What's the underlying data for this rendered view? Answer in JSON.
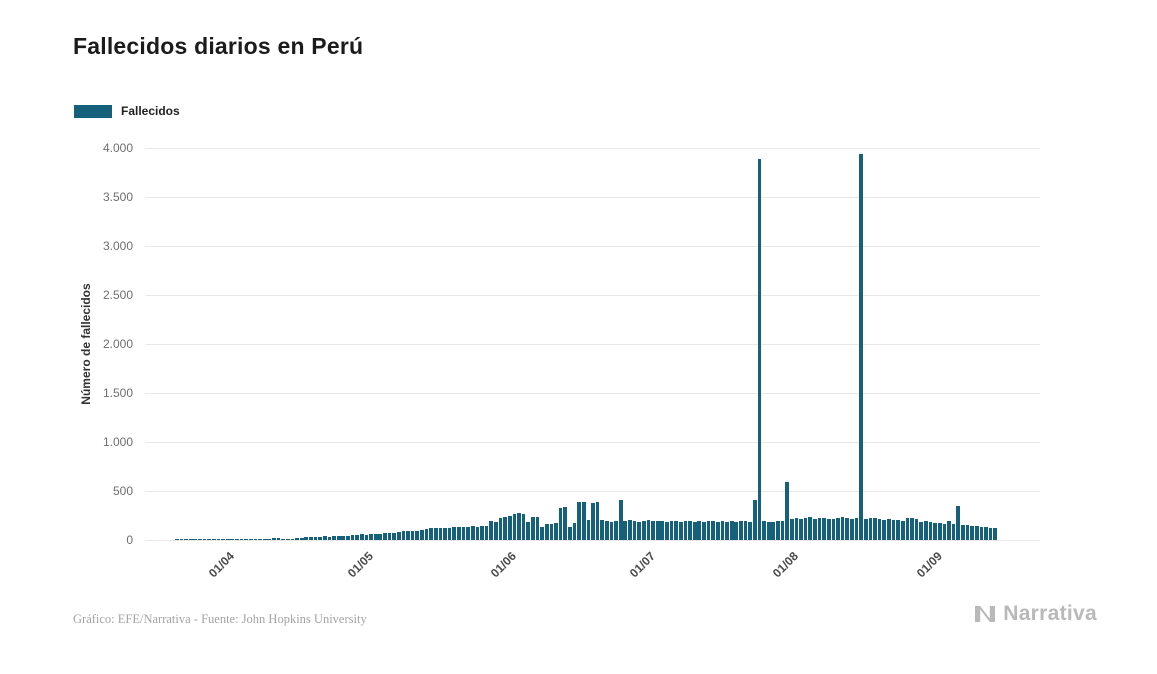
{
  "page": {
    "title": "Fallecidos diarios en Perú",
    "footer_credit": "Gráfico: EFE/Narrativa - Fuente: John Hopkins University",
    "brand": "Narrativa",
    "brand_icon": "narrativa-n-icon"
  },
  "legend": {
    "label": "Fallecidos",
    "color": "#15607a"
  },
  "chart_data": {
    "type": "bar",
    "title": "Fallecidos diarios en Perú",
    "series_name": "Fallecidos",
    "xlabel": "",
    "ylabel": "Número de fallecidos",
    "bar_color": "#15607a",
    "grid": true,
    "legend_position": "top-left",
    "ylim": [
      0,
      4000
    ],
    "yticks": [
      0,
      500,
      1000,
      1500,
      2000,
      2500,
      3000,
      3500,
      4000
    ],
    "ytick_labels": [
      "0",
      "500",
      "1.000",
      "1.500",
      "2.000",
      "2.500",
      "3.000",
      "3.500",
      "4.000"
    ],
    "xticks": [
      "01/04",
      "01/05",
      "01/06",
      "01/07",
      "01/08",
      "01/09"
    ],
    "dates": [
      "20/03",
      "21/03",
      "22/03",
      "23/03",
      "24/03",
      "25/03",
      "26/03",
      "27/03",
      "28/03",
      "29/03",
      "30/03",
      "31/03",
      "01/04",
      "02/04",
      "03/04",
      "04/04",
      "05/04",
      "06/04",
      "07/04",
      "08/04",
      "09/04",
      "10/04",
      "11/04",
      "12/04",
      "13/04",
      "14/04",
      "15/04",
      "16/04",
      "17/04",
      "18/04",
      "19/04",
      "20/04",
      "21/04",
      "22/04",
      "23/04",
      "24/04",
      "25/04",
      "26/04",
      "27/04",
      "28/04",
      "29/04",
      "30/04",
      "01/05",
      "02/05",
      "03/05",
      "04/05",
      "05/05",
      "06/05",
      "07/05",
      "08/05",
      "09/05",
      "10/05",
      "11/05",
      "12/05",
      "13/05",
      "14/05",
      "15/05",
      "16/05",
      "17/05",
      "18/05",
      "19/05",
      "20/05",
      "21/05",
      "22/05",
      "23/05",
      "24/05",
      "25/05",
      "26/05",
      "27/05",
      "28/05",
      "29/05",
      "30/05",
      "31/05",
      "01/06",
      "02/06",
      "03/06",
      "04/06",
      "05/06",
      "06/06",
      "07/06",
      "08/06",
      "09/06",
      "10/06",
      "11/06",
      "12/06",
      "13/06",
      "14/06",
      "15/06",
      "16/06",
      "17/06",
      "18/06",
      "19/06",
      "20/06",
      "21/06",
      "22/06",
      "23/06",
      "24/06",
      "25/06",
      "26/06",
      "27/06",
      "28/06",
      "29/06",
      "30/06",
      "01/07",
      "02/07",
      "03/07",
      "04/07",
      "05/07",
      "06/07",
      "07/07",
      "08/07",
      "09/07",
      "10/07",
      "11/07",
      "12/07",
      "13/07",
      "14/07",
      "15/07",
      "16/07",
      "17/07",
      "18/07",
      "19/07",
      "20/07",
      "21/07",
      "22/07",
      "23/07",
      "24/07",
      "25/07",
      "26/07",
      "27/07",
      "28/07",
      "29/07",
      "30/07",
      "31/07",
      "01/08",
      "02/08",
      "03/08",
      "04/08",
      "05/08",
      "06/08",
      "07/08",
      "08/08",
      "09/08",
      "10/08",
      "11/08",
      "12/08",
      "13/08",
      "14/08",
      "15/08",
      "16/08",
      "17/08",
      "18/08",
      "19/08",
      "20/08",
      "21/08",
      "22/08",
      "23/08",
      "24/08",
      "25/08",
      "26/08",
      "27/08",
      "28/08",
      "29/08",
      "30/08",
      "31/08",
      "01/09",
      "02/09",
      "03/09",
      "04/09",
      "05/09",
      "06/09",
      "07/09",
      "08/09",
      "09/09",
      "10/09",
      "11/09",
      "12/09",
      "13/09"
    ],
    "values": [
      1,
      1,
      2,
      2,
      2,
      3,
      2,
      3,
      4,
      2,
      5,
      6,
      7,
      14,
      11,
      8,
      10,
      9,
      12,
      13,
      7,
      21,
      22,
      12,
      12,
      13,
      16,
      20,
      26,
      28,
      26,
      31,
      39,
      34,
      36,
      42,
      38,
      40,
      48,
      52,
      62,
      54,
      58,
      64,
      59,
      68,
      72,
      76,
      84,
      92,
      96,
      88,
      94,
      104,
      110,
      118,
      123,
      126,
      120,
      124,
      131,
      132,
      128,
      136,
      141,
      134,
      143,
      148,
      195,
      185,
      225,
      230,
      240,
      270,
      272,
      268,
      180,
      230,
      238,
      130,
      160,
      165,
      170,
      330,
      332,
      130,
      175,
      385,
      390,
      200,
      382,
      388,
      202,
      195,
      185,
      190,
      412,
      195,
      200,
      190,
      185,
      195,
      200,
      195,
      190,
      198,
      185,
      190,
      192,
      188,
      195,
      190,
      185,
      192,
      188,
      195,
      190,
      188,
      192,
      186,
      190,
      188,
      194,
      190,
      188,
      412,
      3887,
      190,
      185,
      188,
      190,
      195,
      589,
      210,
      220,
      215,
      225,
      230,
      218,
      222,
      228,
      215,
      210,
      225,
      230,
      220,
      218,
      226,
      3935,
      215,
      220,
      225,
      210,
      205,
      215,
      208,
      200,
      195,
      220,
      225,
      210,
      185,
      190,
      180,
      175,
      170,
      165,
      190,
      160,
      350,
      155,
      150,
      145,
      140,
      135,
      130,
      125,
      120
    ]
  }
}
